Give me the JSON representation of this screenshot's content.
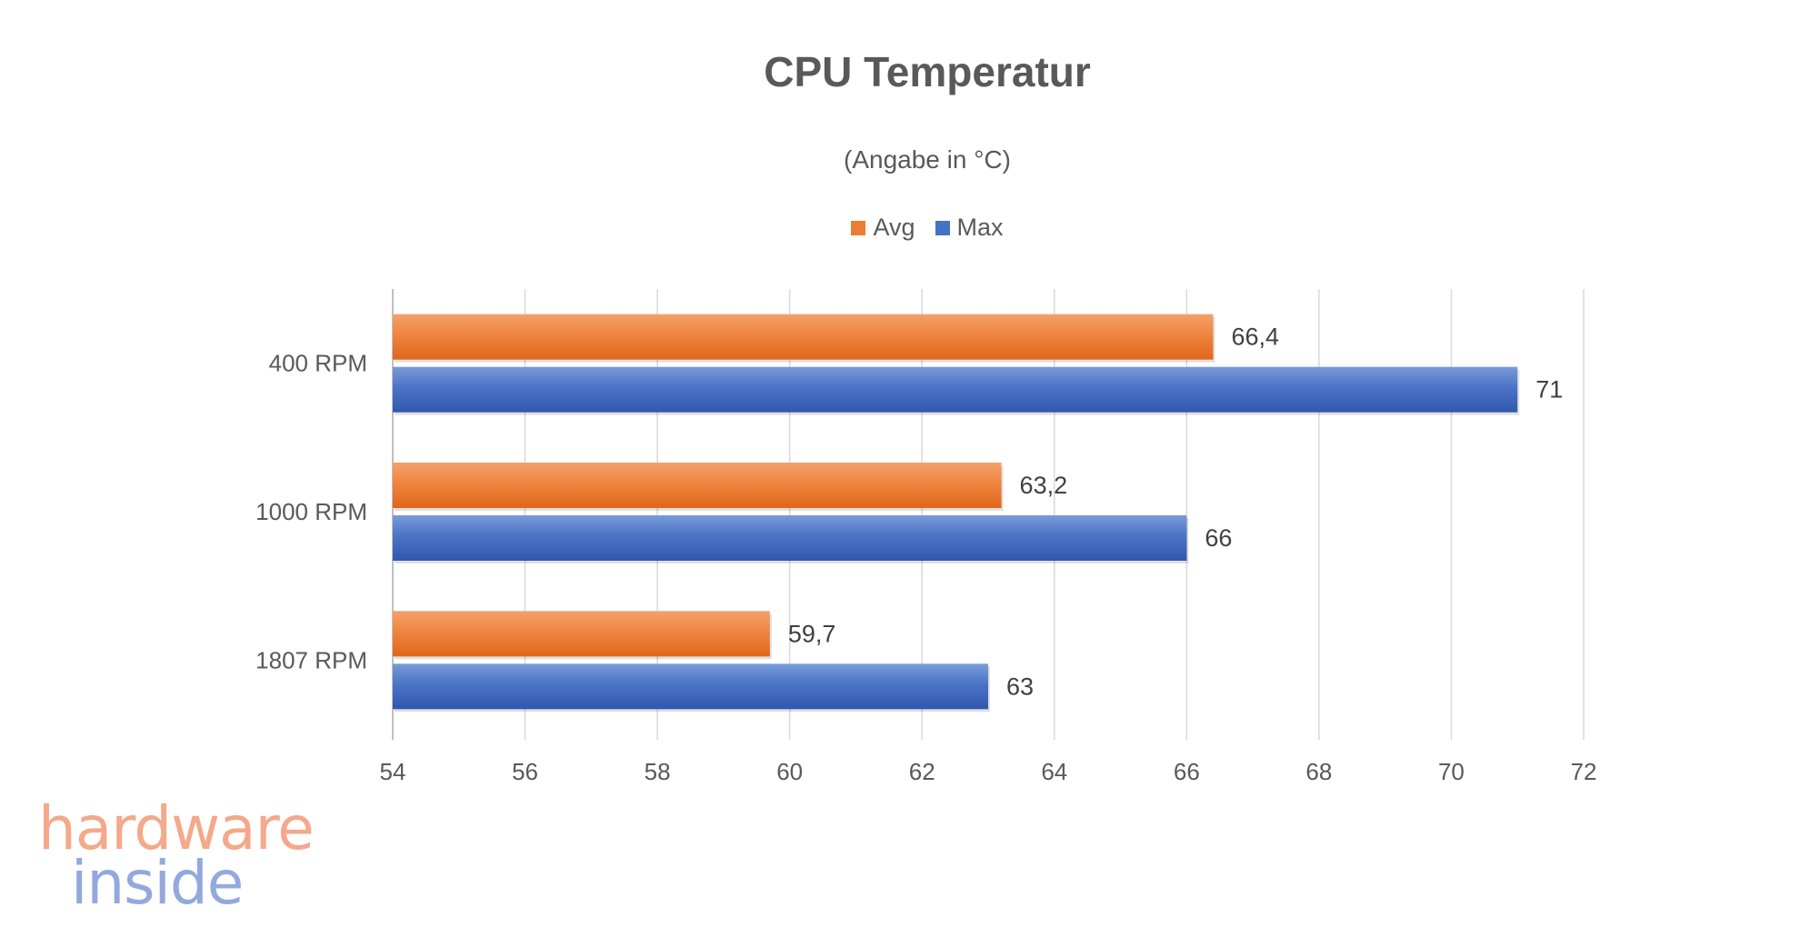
{
  "chart_data": {
    "type": "bar",
    "orientation": "horizontal",
    "title": "CPU Temperatur",
    "subtitle": "(Angabe in °C)",
    "categories": [
      "400 RPM",
      "1000 RPM",
      "1807 RPM"
    ],
    "series": [
      {
        "name": "Avg",
        "color": "#ED7D31",
        "values": [
          66.4,
          63.2,
          59.7
        ],
        "labels": [
          "66,4",
          "63,2",
          "59,7"
        ]
      },
      {
        "name": "Max",
        "color": "#4472C4",
        "values": [
          71,
          66,
          63
        ],
        "labels": [
          "71",
          "66",
          "63"
        ]
      }
    ],
    "xlim": [
      54,
      72
    ],
    "xticks": [
      "54",
      "56",
      "58",
      "60",
      "62",
      "64",
      "66",
      "68",
      "70",
      "72"
    ],
    "grid": true,
    "legend_position": "top-center",
    "xlabel": "",
    "ylabel": ""
  },
  "watermark": {
    "line1": "hardware",
    "line2": "inside",
    "color1": "#F3A98A",
    "color2": "#93A9DE"
  }
}
